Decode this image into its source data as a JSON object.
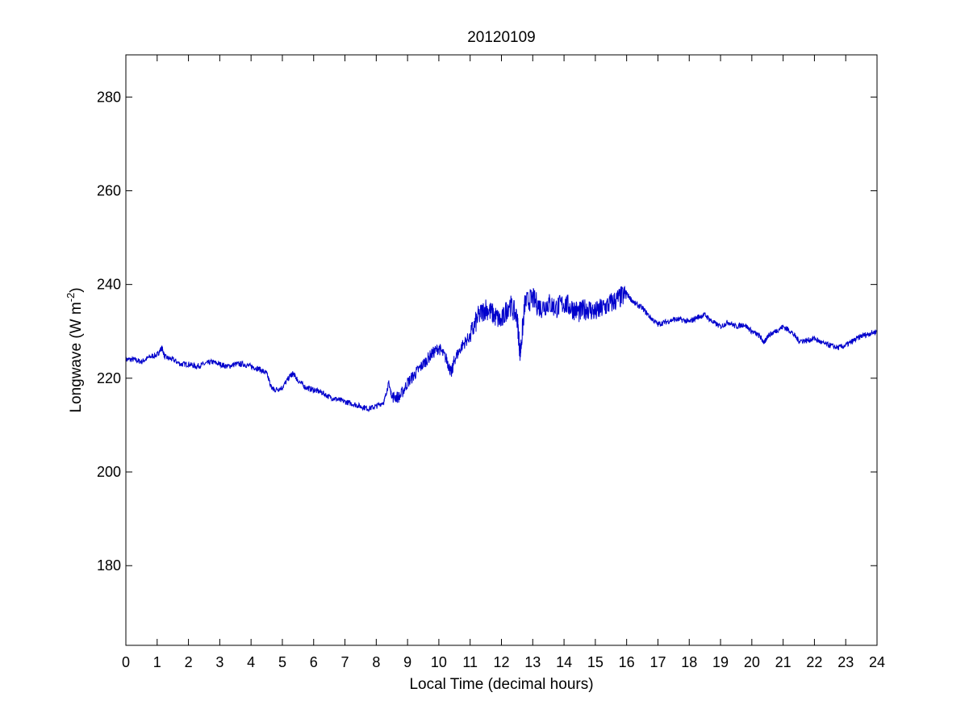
{
  "chart_data": {
    "type": "line",
    "title": "20120109",
    "xlabel": "Local Time (decimal hours)",
    "ylabel": {
      "main": "Longwave (W m",
      "superscript": "-2",
      "close": ")"
    },
    "xlim": [
      0,
      24
    ],
    "ylim": [
      163,
      289
    ],
    "xticks": [
      "0",
      "1",
      "2",
      "3",
      "4",
      "5",
      "6",
      "7",
      "8",
      "9",
      "10",
      "11",
      "12",
      "13",
      "14",
      "15",
      "16",
      "17",
      "18",
      "19",
      "20",
      "21",
      "22",
      "23",
      "24"
    ],
    "yticks": [
      "180",
      "200",
      "220",
      "240",
      "260",
      "280"
    ],
    "grid": false,
    "line_color": "#0000cc",
    "series": [
      {
        "x": [
          0,
          0.25,
          0.5,
          0.75,
          1,
          1.15,
          1.25,
          1.5,
          1.75,
          2,
          2.25,
          2.5,
          2.75,
          3,
          3.25,
          3.5,
          3.75,
          4,
          4.25,
          4.5,
          4.65,
          4.75,
          5,
          5.25,
          5.35,
          5.5,
          5.75,
          6,
          6.25,
          6.5,
          6.75,
          7,
          7.25,
          7.5,
          7.75,
          8,
          8.25,
          8.4,
          8.5,
          8.75,
          9,
          9.25,
          9.5,
          9.75,
          10,
          10.25,
          10.4,
          10.5,
          10.75,
          11,
          11.25,
          11.5,
          11.75,
          12,
          12.25,
          12.5,
          12.6,
          12.75,
          13,
          13.25,
          13.5,
          13.75,
          14,
          14.25,
          14.5,
          14.75,
          15,
          15.25,
          15.5,
          15.75,
          16,
          16.25,
          16.5,
          16.75,
          17,
          17.25,
          17.5,
          17.75,
          18,
          18.25,
          18.5,
          18.75,
          19,
          19.25,
          19.5,
          19.75,
          20,
          20.25,
          20.4,
          20.5,
          20.75,
          21,
          21.25,
          21.5,
          21.75,
          22,
          22.25,
          22.5,
          22.75,
          23,
          23.25,
          23.5,
          23.75,
          24
        ],
        "y": [
          224,
          224,
          223.5,
          224.5,
          225,
          226.5,
          224.5,
          224,
          223,
          223,
          222.5,
          223,
          223.5,
          223,
          222.5,
          223,
          223,
          222.5,
          222,
          221,
          218,
          217.5,
          218,
          220.5,
          221,
          219.5,
          218,
          217.5,
          217,
          216,
          215.5,
          215,
          214.5,
          214,
          213.5,
          214,
          215,
          219,
          216,
          216,
          219,
          221,
          223,
          225,
          226.5,
          224,
          221,
          224,
          227,
          229,
          233,
          235,
          233.5,
          232,
          236,
          233,
          225,
          236,
          237,
          235,
          236,
          235,
          236,
          235,
          234,
          235,
          234,
          235,
          236,
          237,
          238,
          236,
          235,
          233,
          231.5,
          232,
          232.5,
          232.5,
          232,
          233,
          233.5,
          232,
          231,
          232,
          231,
          231.5,
          230,
          229,
          227.5,
          229,
          230,
          231,
          230,
          228,
          228,
          228.5,
          227.5,
          227,
          226.5,
          227,
          228,
          229,
          229.5,
          230
        ]
      }
    ]
  }
}
